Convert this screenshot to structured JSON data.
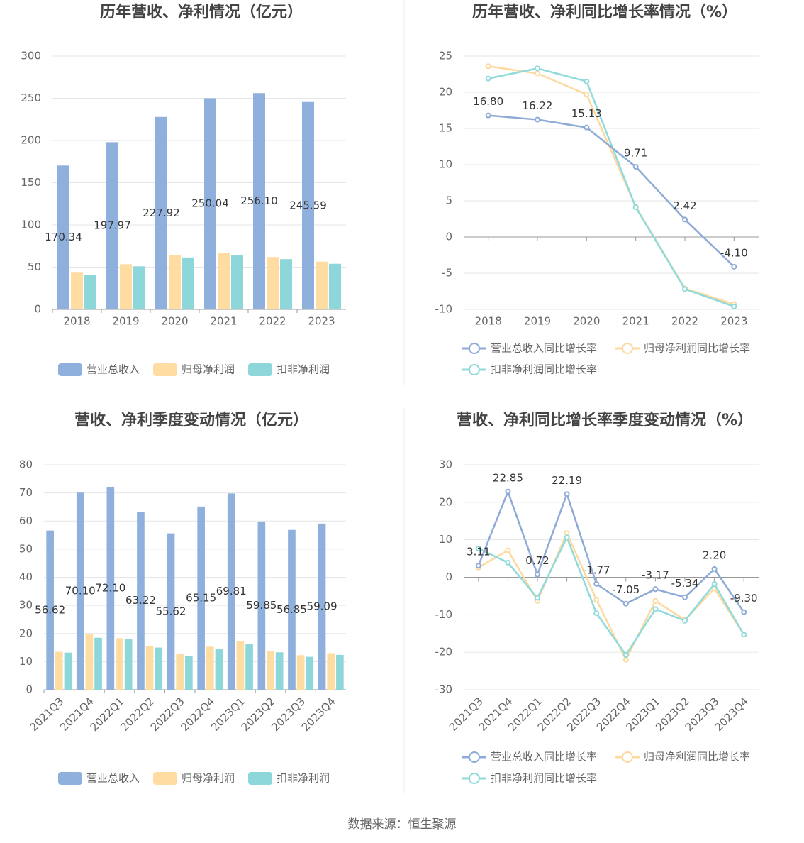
{
  "chart_data": [
    {
      "type": "bar",
      "title": "历年营收、净利情况（亿元）",
      "categories": [
        "2018",
        "2019",
        "2020",
        "2021",
        "2022",
        "2023"
      ],
      "series": [
        {
          "name": "营业总收入",
          "color": "#8fb0dd",
          "values": [
            170.34,
            197.97,
            227.92,
            250.04,
            256.1,
            245.59
          ],
          "value_labels": [
            "170.34",
            "197.97",
            "227.92",
            "250.04",
            "256.10",
            "245.59"
          ]
        },
        {
          "name": "归母净利润",
          "color": "#fedca2",
          "values": [
            43.5,
            53.5,
            64,
            66.5,
            62,
            56.5
          ]
        },
        {
          "name": "扣非净利润",
          "color": "#8dd6d9",
          "values": [
            41,
            51,
            61.5,
            64.5,
            59.5,
            54
          ]
        }
      ],
      "ylim": [
        0,
        300
      ],
      "yticks": [
        0,
        50,
        100,
        150,
        200,
        250,
        300
      ],
      "grid": true
    },
    {
      "type": "line",
      "title": "历年营收、净利同比增长率情况（%）",
      "categories": [
        "2018",
        "2019",
        "2020",
        "2021",
        "2022",
        "2023"
      ],
      "series": [
        {
          "name": "营业总收入同比增长率",
          "color": "#8eaad6",
          "values": [
            16.8,
            16.22,
            15.13,
            9.71,
            2.42,
            -4.1
          ],
          "value_labels": [
            "16.80",
            "16.22",
            "15.13",
            "9.71",
            "2.42",
            "-4.10"
          ]
        },
        {
          "name": "归母净利润同比增长率",
          "color": "#fdd9a0",
          "values": [
            23.6,
            22.6,
            19.7,
            4.2,
            -7.1,
            -9.3
          ]
        },
        {
          "name": "扣非净利润同比增长率",
          "color": "#8fdadb",
          "values": [
            21.9,
            23.3,
            21.5,
            4.1,
            -7.2,
            -9.6
          ]
        }
      ],
      "ylim": [
        -10,
        25
      ],
      "yticks": [
        -10,
        -5,
        0,
        5,
        10,
        15,
        20,
        25
      ],
      "grid": true
    },
    {
      "type": "bar",
      "title": "营收、净利季度变动情况（亿元）",
      "categories": [
        "2021Q3",
        "2021Q4",
        "2022Q1",
        "2022Q2",
        "2022Q3",
        "2022Q4",
        "2023Q1",
        "2023Q2",
        "2023Q3",
        "2023Q4"
      ],
      "series": [
        {
          "name": "营业总收入",
          "color": "#8fb0dd",
          "values": [
            56.62,
            70.1,
            72.1,
            63.22,
            55.62,
            65.15,
            69.81,
            59.85,
            56.85,
            59.09
          ],
          "value_labels": [
            "56.62",
            "70.10",
            "72.10",
            "63.22",
            "55.62",
            "65.15",
            "69.81",
            "59.85",
            "56.85",
            "59.09"
          ]
        },
        {
          "name": "归母净利润",
          "color": "#fedca2",
          "values": [
            13.5,
            19.8,
            18.3,
            15.6,
            12.7,
            15.3,
            17.2,
            13.8,
            12.3,
            13.0
          ]
        },
        {
          "name": "扣非净利润",
          "color": "#8dd6d9",
          "values": [
            13.2,
            18.5,
            17.9,
            15.0,
            12.0,
            14.6,
            16.4,
            13.3,
            11.7,
            12.4
          ]
        }
      ],
      "ylim": [
        0,
        80
      ],
      "yticks": [
        0,
        10,
        20,
        30,
        40,
        50,
        60,
        70,
        80
      ],
      "grid": true,
      "x_tick_rotation": 45
    },
    {
      "type": "line",
      "title": "营收、净利同比增长率季度变动情况（%）",
      "categories": [
        "2021Q3",
        "2021Q4",
        "2022Q1",
        "2022Q2",
        "2022Q3",
        "2022Q4",
        "2023Q1",
        "2023Q2",
        "2023Q3",
        "2023Q4"
      ],
      "series": [
        {
          "name": "营业总收入同比增长率",
          "color": "#8eaad6",
          "values": [
            3.11,
            22.85,
            0.72,
            22.19,
            -1.77,
            -7.05,
            -3.17,
            -5.34,
            2.2,
            -9.3
          ],
          "value_labels": [
            "3.11",
            "22.85",
            "0.72",
            "22.19",
            "-1.77",
            "-7.05",
            "-3.17",
            "-5.34",
            "2.20",
            "-9.30"
          ]
        },
        {
          "name": "归母净利润同比增长率",
          "color": "#fdd9a0",
          "values": [
            2.6,
            7.2,
            -6.3,
            11.8,
            -6.0,
            -22,
            -6.3,
            -11.4,
            -3.0,
            -15.3
          ]
        },
        {
          "name": "扣非净利润同比增长率",
          "color": "#8fdadb",
          "values": [
            7.7,
            3.9,
            -5.5,
            10.6,
            -9.6,
            -20.7,
            -8.5,
            -11.6,
            -1.8,
            -15.3
          ]
        }
      ],
      "ylim": [
        -30,
        30
      ],
      "yticks": [
        -30,
        -20,
        -10,
        0,
        10,
        20,
        30
      ],
      "grid": true,
      "x_tick_rotation": 45
    }
  ],
  "source": "数据来源：恒生聚源"
}
